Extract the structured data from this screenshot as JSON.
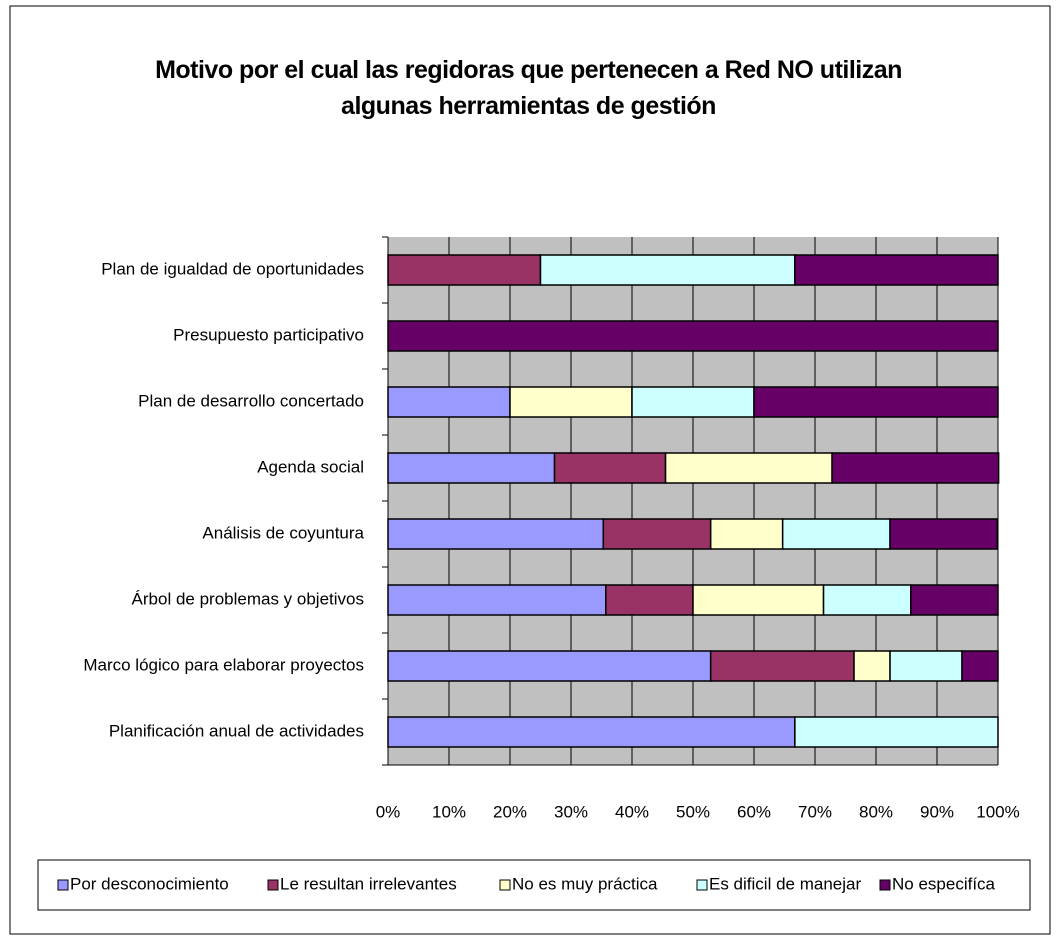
{
  "chart_data": {
    "type": "stacked-bar-horizontal",
    "title": "Motivo por el cual las regidoras que pertenecen a Red NO utilizan\nalgunas herramientas de gestión",
    "categories": [
      "Plan de igualdad de oportunidades",
      "Presupuesto participativo",
      "Plan de desarrollo concertado",
      "Agenda social",
      "Análisis de coyuntura",
      "Árbol de problemas  y objetivos",
      "Marco lógico para elaborar proyectos",
      "Planificación anual de actividades"
    ],
    "series": [
      {
        "name": "Por desconocimiento",
        "color": "#9999ff",
        "values": [
          0,
          0,
          20,
          27.3,
          35.3,
          35.7,
          52.9,
          66.7
        ]
      },
      {
        "name": "Le resultan irrelevantes",
        "color": "#993366",
        "values": [
          25,
          0,
          0,
          18.2,
          17.6,
          14.3,
          23.5,
          0
        ]
      },
      {
        "name": "No es muy práctica",
        "color": "#ffffcc",
        "values": [
          0,
          0,
          20,
          27.3,
          11.8,
          21.4,
          5.9,
          0
        ]
      },
      {
        "name": "Es dificil de manejar",
        "color": "#ccffff",
        "values": [
          41.7,
          0,
          20,
          0,
          17.6,
          14.3,
          11.8,
          33.3
        ]
      },
      {
        "name": "No especifíca",
        "color": "#660066",
        "values": [
          33.3,
          100,
          40,
          27.3,
          17.6,
          14.3,
          5.9,
          0
        ]
      }
    ],
    "xlim": [
      0,
      100
    ],
    "xticks": [
      {
        "value": 0,
        "label": "0%"
      },
      {
        "value": 10,
        "label": "10%"
      },
      {
        "value": 20,
        "label": "20%"
      },
      {
        "value": 30,
        "label": "30%"
      },
      {
        "value": 40,
        "label": "40%"
      },
      {
        "value": 50,
        "label": "50%"
      },
      {
        "value": 60,
        "label": "60%"
      },
      {
        "value": 70,
        "label": "70%"
      },
      {
        "value": 80,
        "label": "80%"
      },
      {
        "value": 90,
        "label": "90%"
      },
      {
        "value": 100,
        "label": "100%"
      }
    ],
    "grid": true,
    "legend": "bottom"
  }
}
